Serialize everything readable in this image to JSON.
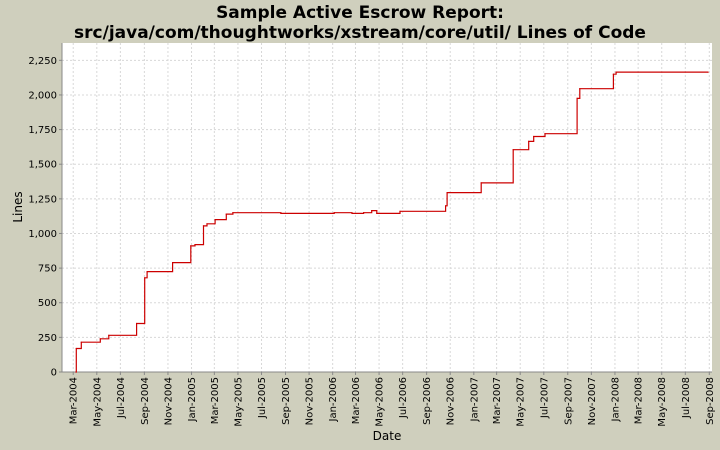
{
  "chart_data": {
    "type": "line",
    "title": "Sample Active Escrow Report:",
    "subtitle": "src/java/com/thoughtworks/xstream/core/util/ Lines of Code",
    "xlabel": "Date",
    "ylabel": "Lines",
    "ylim": [
      0,
      2375
    ],
    "xlim": [
      "2004-02-01",
      "2008-09-08"
    ],
    "y_ticks": [
      0,
      250,
      500,
      750,
      1000,
      1250,
      1500,
      1750,
      2000,
      2250
    ],
    "y_tick_labels": [
      "0",
      "250",
      "500",
      "750",
      "1,000",
      "1,250",
      "1,500",
      "1,750",
      "2,000",
      "2,250"
    ],
    "x_ticks": [
      "2004-03-01",
      "2004-05-01",
      "2004-07-01",
      "2004-09-01",
      "2004-11-01",
      "2005-01-01",
      "2005-03-01",
      "2005-05-01",
      "2005-07-01",
      "2005-09-01",
      "2005-11-01",
      "2006-01-01",
      "2006-03-01",
      "2006-05-01",
      "2006-07-01",
      "2006-09-01",
      "2006-11-01",
      "2007-01-01",
      "2007-03-01",
      "2007-05-01",
      "2007-07-01",
      "2007-09-01",
      "2007-11-01",
      "2008-01-01",
      "2008-03-01",
      "2008-05-01",
      "2008-07-01",
      "2008-09-01"
    ],
    "x_tick_labels": [
      "Mar-2004",
      "May-2004",
      "Jul-2004",
      "Sep-2004",
      "Nov-2004",
      "Jan-2005",
      "Mar-2005",
      "May-2005",
      "Jul-2005",
      "Sep-2005",
      "Nov-2005",
      "Jan-2006",
      "Mar-2006",
      "May-2006",
      "Jul-2006",
      "Sep-2006",
      "Nov-2006",
      "Jan-2007",
      "Mar-2007",
      "May-2007",
      "Jul-2007",
      "Sep-2007",
      "Nov-2007",
      "Jan-2008",
      "Mar-2008",
      "May-2008",
      "Jul-2008",
      "Sep-2008"
    ],
    "grid": true,
    "series": [
      {
        "color": "#cc0000",
        "step": true,
        "points": [
          [
            "2004-03-08",
            0
          ],
          [
            "2004-03-09",
            170
          ],
          [
            "2004-03-22",
            215
          ],
          [
            "2004-05-10",
            240
          ],
          [
            "2004-06-01",
            265
          ],
          [
            "2004-08-12",
            350
          ],
          [
            "2004-09-02",
            680
          ],
          [
            "2004-09-08",
            725
          ],
          [
            "2004-11-13",
            790
          ],
          [
            "2004-12-30",
            910
          ],
          [
            "2005-01-10",
            920
          ],
          [
            "2005-02-01",
            1055
          ],
          [
            "2005-02-10",
            1070
          ],
          [
            "2005-03-03",
            1100
          ],
          [
            "2005-04-01",
            1140
          ],
          [
            "2005-04-18",
            1150
          ],
          [
            "2005-08-20",
            1145
          ],
          [
            "2006-01-05",
            1150
          ],
          [
            "2006-02-20",
            1145
          ],
          [
            "2006-03-22",
            1150
          ],
          [
            "2006-04-12",
            1165
          ],
          [
            "2006-04-25",
            1145
          ],
          [
            "2006-06-24",
            1160
          ],
          [
            "2006-10-20",
            1200
          ],
          [
            "2006-10-24",
            1295
          ],
          [
            "2007-01-20",
            1365
          ],
          [
            "2007-04-13",
            1605
          ],
          [
            "2007-05-23",
            1665
          ],
          [
            "2007-06-05",
            1700
          ],
          [
            "2007-07-04",
            1720
          ],
          [
            "2007-09-25",
            1975
          ],
          [
            "2007-10-02",
            2045
          ],
          [
            "2007-12-28",
            2150
          ],
          [
            "2008-01-04",
            2165
          ],
          [
            "2008-08-29",
            2165
          ]
        ]
      }
    ]
  }
}
